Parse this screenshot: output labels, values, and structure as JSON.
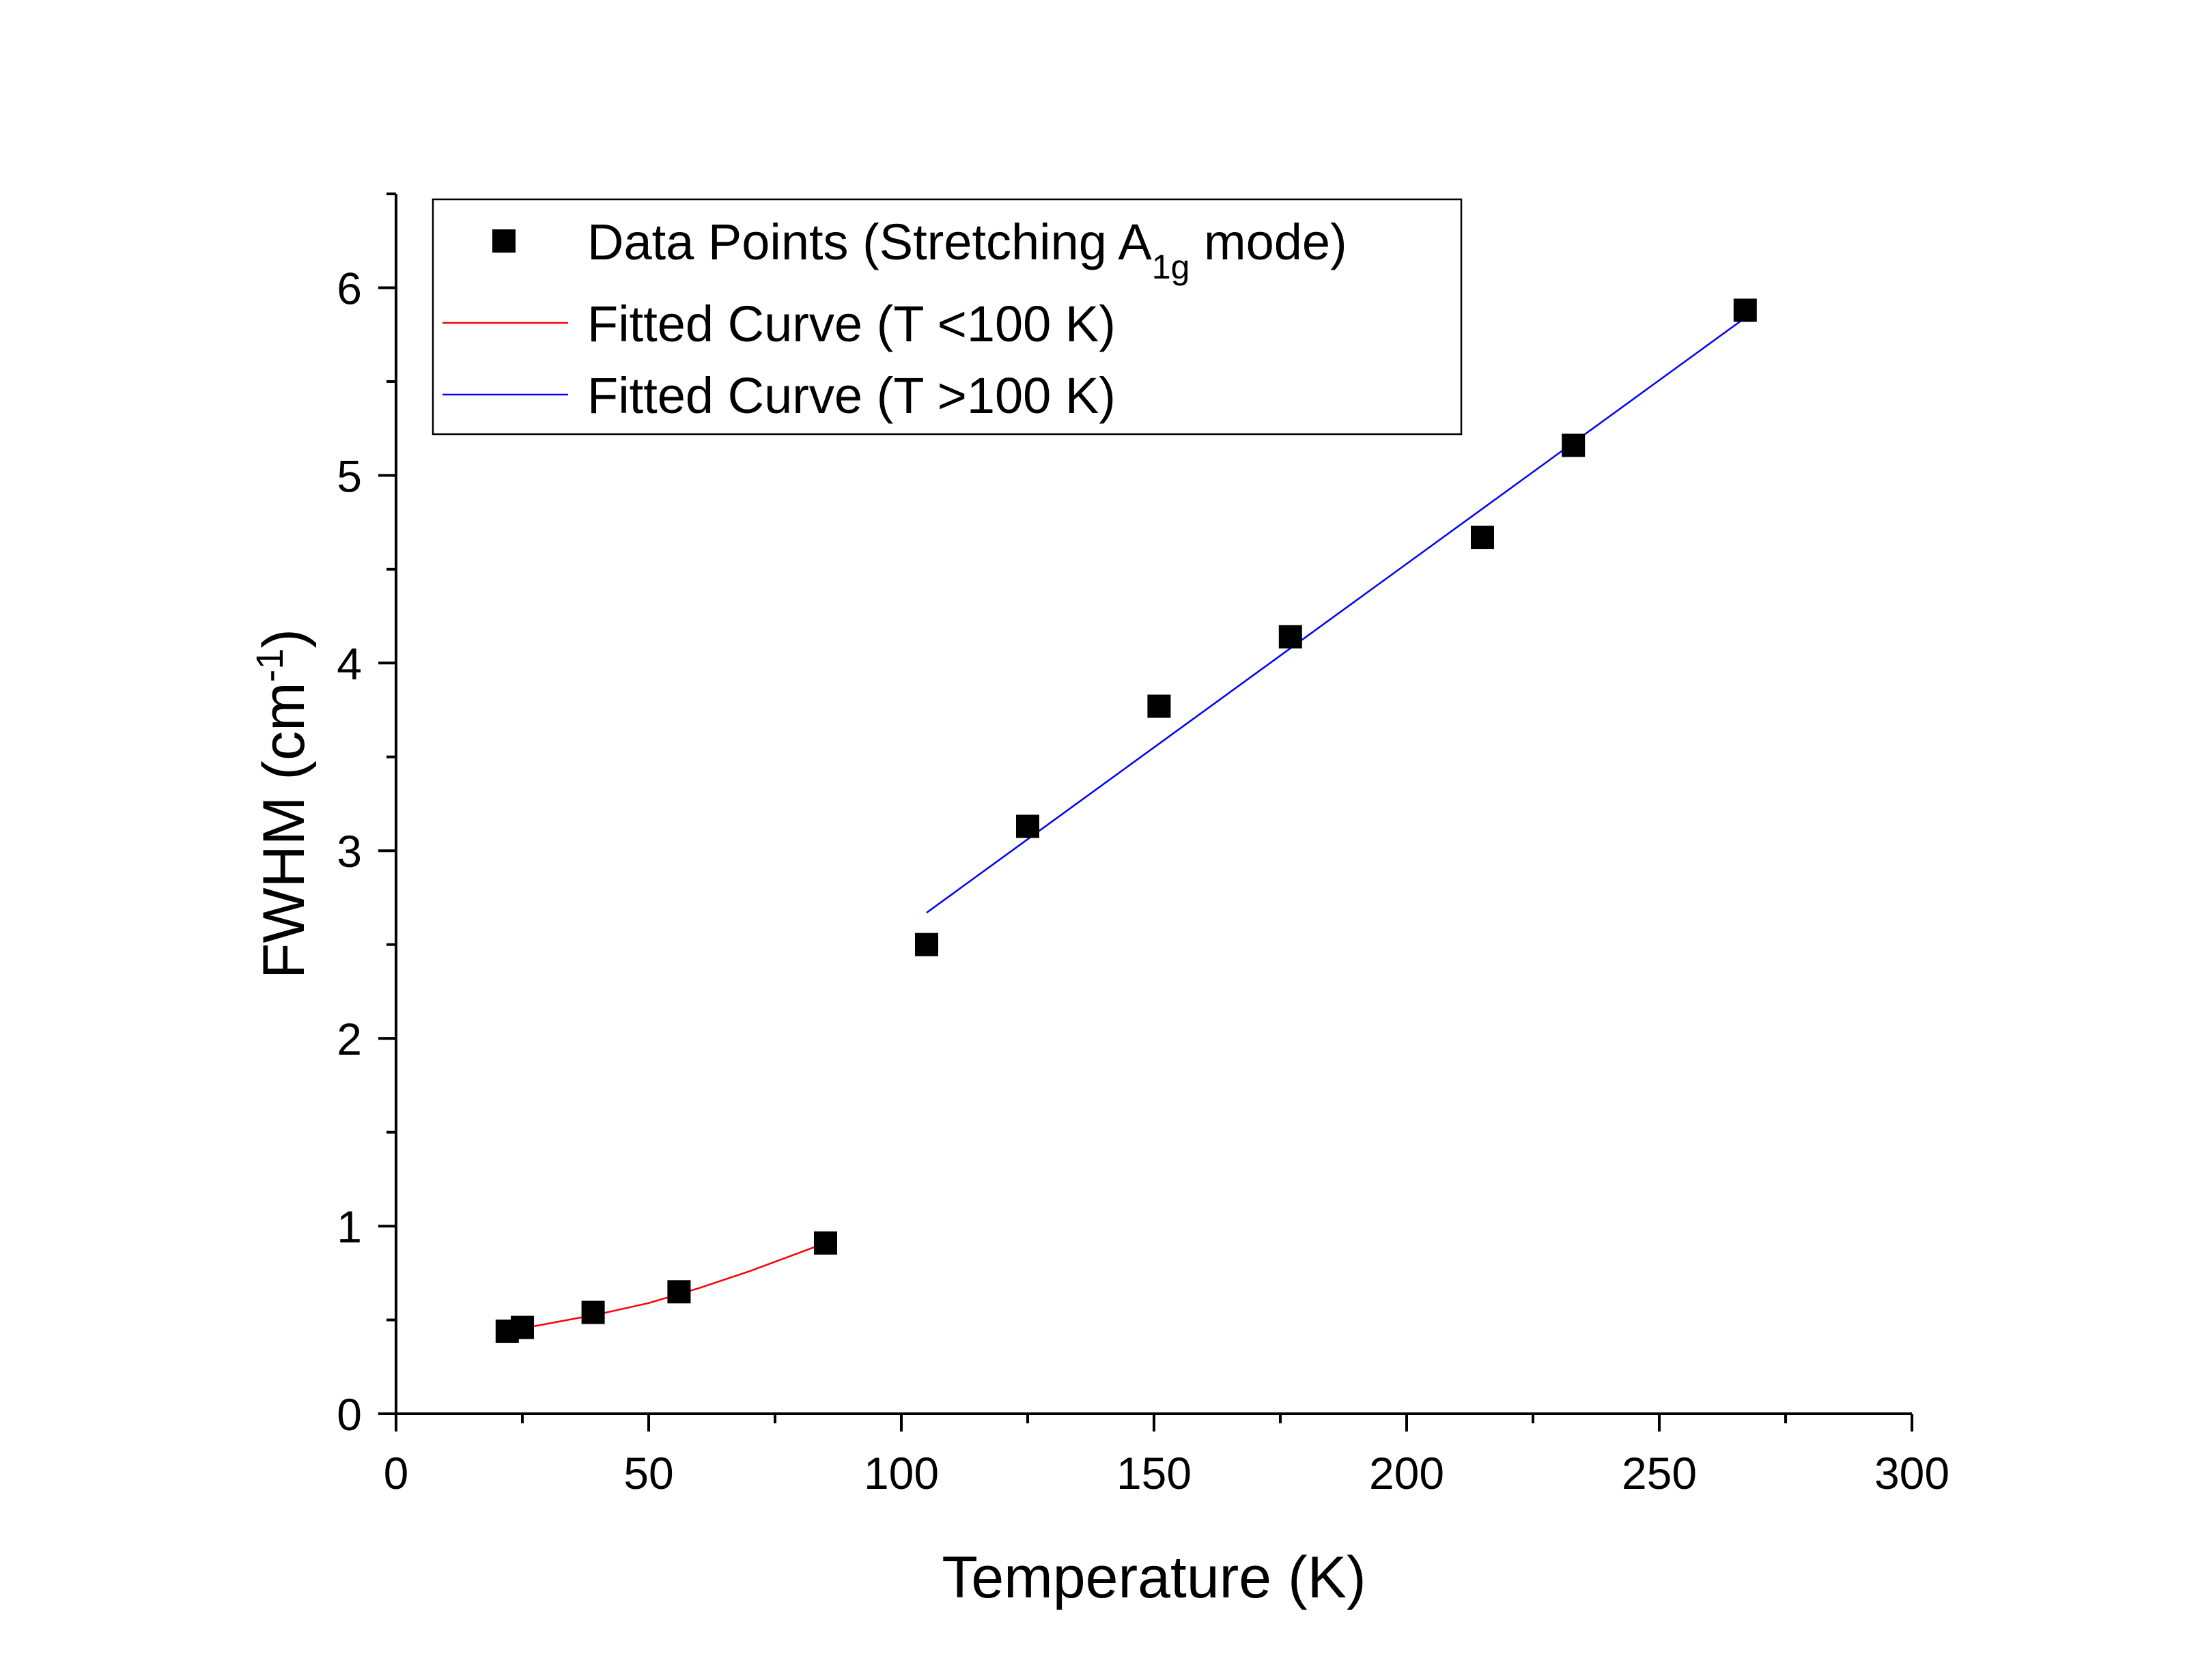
{
  "chart_data": {
    "type": "scatter",
    "title": "",
    "xlabel": "Temperature (K)",
    "ylabel": {
      "main": "FWHM (cm",
      "sup": "-1",
      "end": ")"
    },
    "xlim": [
      0,
      300
    ],
    "ylim": [
      0,
      6.5
    ],
    "xticks": [
      "0",
      "50",
      "100",
      "150",
      "200",
      "250",
      "300"
    ],
    "yticks": [
      "0",
      "1",
      "2",
      "3",
      "4",
      "5",
      "6"
    ],
    "grid": false,
    "legend_position": "top-left",
    "legend": {
      "data_points": {
        "label_main": "Data Points (Stretching A",
        "label_sub": "1g",
        "label_end": " mode)"
      },
      "fit_low": {
        "label": "Fitted Curve (T <100 K)"
      },
      "fit_high": {
        "label": "Fitted Curve (T >100 K)"
      }
    },
    "series": [
      {
        "name": "Data Points (Stretching A1g mode)",
        "kind": "scatter",
        "marker": "square",
        "color": "#000000",
        "x": [
          22,
          25,
          39,
          56,
          85,
          105,
          125,
          151,
          177,
          215,
          233,
          267
        ],
        "y": [
          0.44,
          0.46,
          0.54,
          0.65,
          0.91,
          2.5,
          3.13,
          3.77,
          4.14,
          4.67,
          5.16,
          5.88
        ]
      },
      {
        "name": "Fitted Curve (T <100 K)",
        "kind": "line",
        "color": "#ff0000",
        "x": [
          22,
          30,
          40,
          50,
          60,
          70,
          80,
          85
        ],
        "y": [
          0.44,
          0.48,
          0.53,
          0.59,
          0.67,
          0.76,
          0.86,
          0.91
        ]
      },
      {
        "name": "Fitted Curve (T >100 K)",
        "kind": "line",
        "color": "#0000ff",
        "x": [
          105,
          267
        ],
        "y": [
          2.67,
          5.84
        ]
      }
    ]
  }
}
